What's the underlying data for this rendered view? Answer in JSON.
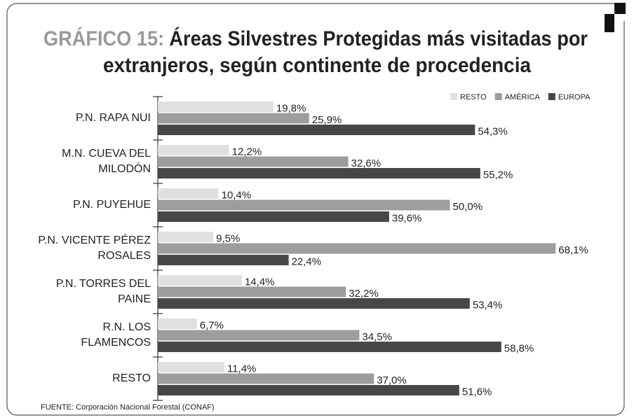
{
  "chart_data": {
    "type": "bar",
    "orientation": "horizontal",
    "title": {
      "prefix": "GRÁFICO 15:",
      "lines": [
        "Áreas Silvestres Protegidas más visitadas por",
        "extranjeros, según continente de procedencia"
      ]
    },
    "categories": [
      [
        "P.N. RAPA NUI"
      ],
      [
        "M.N. CUEVA DEL",
        "MILODÓN"
      ],
      [
        "P.N. PUYEHUE"
      ],
      [
        "P.N. VICENTE PÉREZ",
        "ROSALES"
      ],
      [
        "P.N. TORRES DEL",
        "PAINE"
      ],
      [
        "R.N. LOS",
        "FLAMENCOS"
      ],
      [
        "RESTO"
      ]
    ],
    "series": [
      {
        "name": "RESTO",
        "color": "#e0e0e0",
        "values": [
          19.8,
          12.2,
          10.4,
          9.5,
          14.4,
          6.7,
          11.4
        ],
        "value_labels": [
          "19,8%",
          "12,2%",
          "10,4%",
          "9,5%",
          "14,4%",
          "6,7%",
          "11,4%"
        ]
      },
      {
        "name": "AMÉRICA",
        "color": "#9d9d9d",
        "values": [
          25.9,
          32.6,
          50.0,
          68.1,
          32.2,
          34.5,
          37.0
        ],
        "value_labels": [
          "25,9%",
          "32,6%",
          "50,0%",
          "68,1%",
          "32,2%",
          "34,5%",
          "37,0%"
        ]
      },
      {
        "name": "EUROPA",
        "color": "#474747",
        "values": [
          54.3,
          55.2,
          39.6,
          22.4,
          53.4,
          58.8,
          51.6
        ],
        "value_labels": [
          "54,3%",
          "55,2%",
          "39,6%",
          "22,4%",
          "53,4%",
          "58,8%",
          "51,6%"
        ]
      }
    ],
    "legend": "top-right",
    "source": "FUENTE: Corporación Nacional Forestal (CONAF)"
  }
}
